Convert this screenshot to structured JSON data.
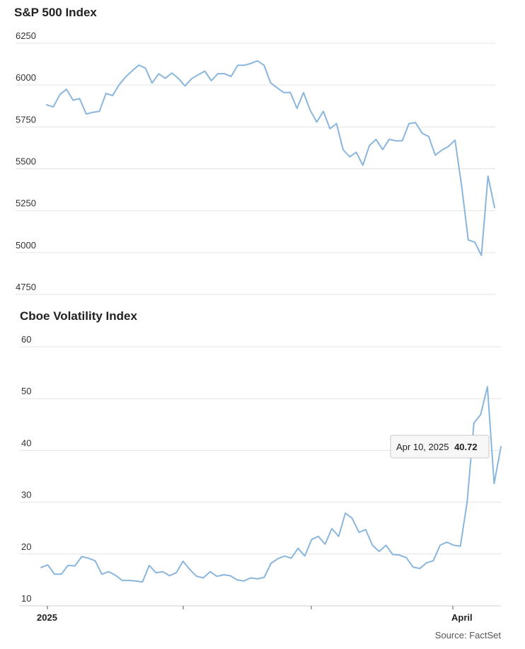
{
  "chart_data": [
    {
      "type": "line",
      "title": "S&P 500 Index",
      "ylim": [
        4750,
        6250
      ],
      "yticks": [
        4750,
        5000,
        5250,
        5500,
        5750,
        6000,
        6250
      ],
      "grid": true,
      "series": [
        {
          "values": [
            5882,
            5869,
            5943,
            5975,
            5910,
            5919,
            5827,
            5837,
            5843,
            5950,
            5937,
            6002,
            6049,
            6086,
            6119,
            6101,
            6012,
            6067,
            6040,
            6072,
            6039,
            5995,
            6038,
            6061,
            6083,
            6026,
            6068,
            6068,
            6051,
            6118,
            6118,
            6129,
            6144,
            6118,
            6013,
            5983,
            5955,
            5956,
            5861,
            5955,
            5850,
            5779,
            5843,
            5739,
            5770,
            5614,
            5572,
            5599,
            5521,
            5639,
            5675,
            5615,
            5676,
            5667,
            5668,
            5770,
            5776,
            5712,
            5693,
            5581,
            5612,
            5633,
            5671,
            5396,
            5075,
            5062,
            4983,
            5457,
            5268
          ]
        }
      ]
    },
    {
      "type": "line",
      "title": "Cboe Volatility Index",
      "ylim": [
        10,
        60
      ],
      "yticks": [
        10,
        20,
        30,
        40,
        50,
        60
      ],
      "xticks": [
        "2025",
        "",
        "",
        "April"
      ],
      "grid": true,
      "series": [
        {
          "values": [
            17.4,
            17.9,
            16.1,
            16.1,
            17.8,
            17.7,
            19.5,
            19.2,
            18.7,
            16.1,
            16.6,
            15.9,
            14.9,
            14.9,
            14.8,
            14.6,
            17.8,
            16.4,
            16.6,
            15.8,
            16.4,
            18.6,
            17.0,
            15.7,
            15.4,
            16.6,
            15.7,
            16.0,
            15.8,
            15.0,
            14.8,
            15.4,
            15.2,
            15.5,
            18.2,
            19.1,
            19.6,
            19.2,
            21.1,
            19.6,
            22.8,
            23.4,
            21.9,
            24.9,
            23.4,
            27.9,
            26.9,
            24.2,
            24.7,
            21.7,
            20.5,
            21.7,
            19.9,
            19.8,
            19.3,
            17.5,
            17.2,
            18.3,
            18.7,
            21.7,
            22.3,
            21.7,
            21.5,
            30.0,
            45.3,
            46.9,
            52.3,
            33.6,
            40.72
          ]
        }
      ],
      "tooltip": {
        "date": "Apr 10, 2025",
        "value": "40.72"
      }
    }
  ],
  "source": "Source: FactSet",
  "colors": {
    "line": "#8ab6dd",
    "grid": "#e3e3e3"
  }
}
